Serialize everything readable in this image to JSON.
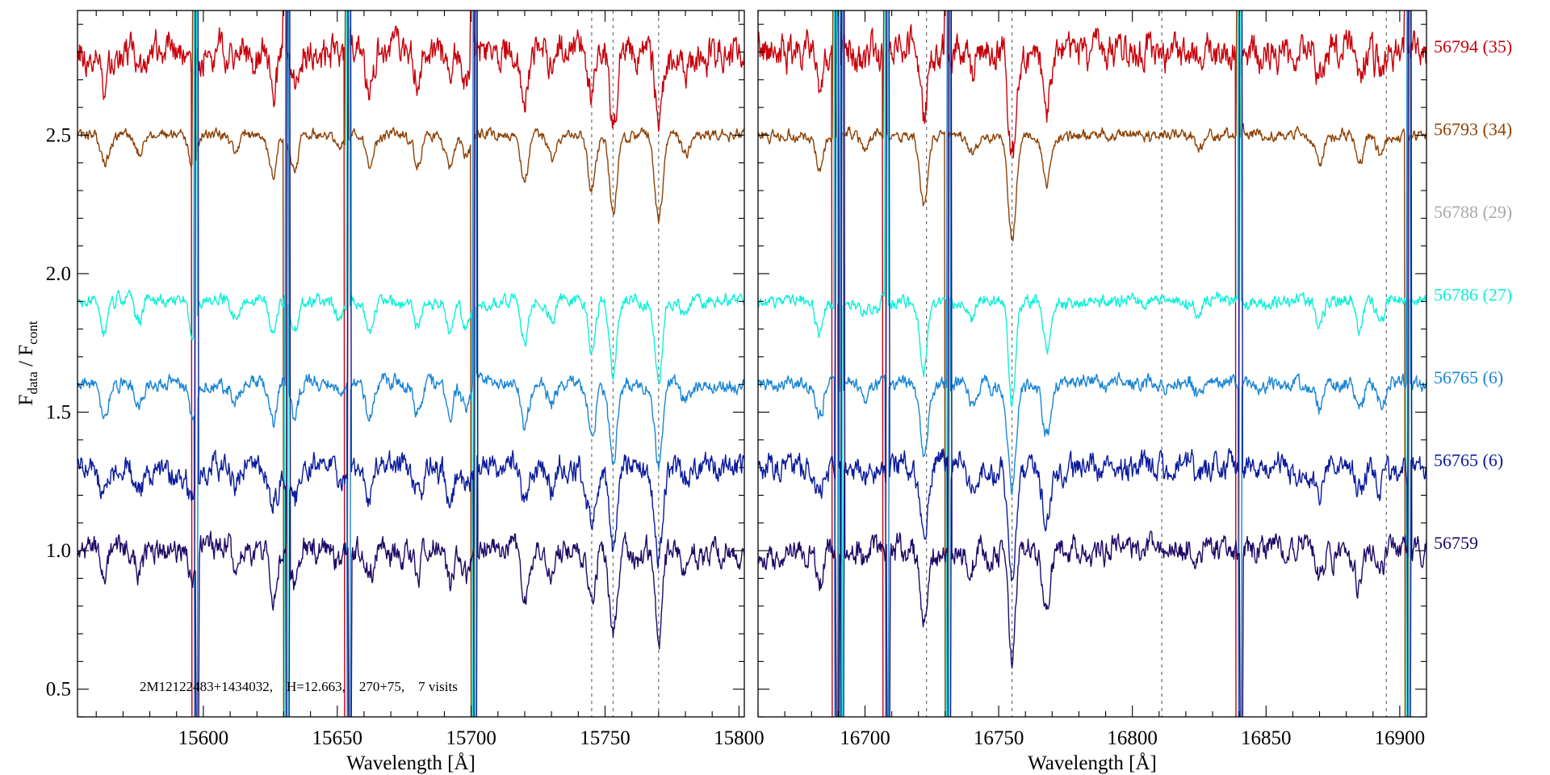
{
  "chart_data": {
    "type": "line",
    "ylabel": {
      "f1": "F",
      "sub1": "data",
      "sep": " / ",
      "f2": "F",
      "sub2": "cont"
    },
    "ylim": [
      0.4,
      2.95
    ],
    "yticks": [
      0.5,
      1.0,
      1.5,
      2.0,
      2.5
    ],
    "ytick_labels": [
      "0.5",
      "1.0",
      "1.5",
      "2.0",
      "2.5"
    ],
    "yminor_step": 0.1,
    "grid": false,
    "annotation": "2M12122483+1434032,    H=12.663,    270+75,    7 visits",
    "panels": [
      {
        "xlabel": "Wavelength [Å]",
        "xlim": [
          15553,
          15802
        ],
        "xticks": [
          15600,
          15650,
          15700,
          15750,
          15800
        ],
        "xtick_labels": [
          "15600",
          "15650",
          "15700",
          "15750",
          "15800"
        ],
        "xminor_step": 10,
        "dashed_lines": [
          15745,
          15753,
          15770
        ],
        "absorption_lines": [
          [
            15563,
            0.1
          ],
          [
            15576,
            0.07
          ],
          [
            15596,
            0.12
          ],
          [
            15612,
            0.06
          ],
          [
            15626,
            0.14
          ],
          [
            15634,
            0.12
          ],
          [
            15651,
            0.05
          ],
          [
            15662,
            0.12
          ],
          [
            15680,
            0.1
          ],
          [
            15692,
            0.11
          ],
          [
            15698,
            0.08
          ],
          [
            15720,
            0.15
          ],
          [
            15730,
            0.08
          ],
          [
            15745,
            0.2
          ],
          [
            15753,
            0.28
          ],
          [
            15770,
            0.3
          ],
          [
            15780,
            0.06
          ]
        ],
        "spikes": [
          15597,
          15631,
          15654,
          15701
        ]
      },
      {
        "xlabel": "Wavelength [Å]",
        "xlim": [
          16660,
          16910
        ],
        "xticks": [
          16700,
          16750,
          16800,
          16850,
          16900
        ],
        "xtick_labels": [
          "16700",
          "16750",
          "16800",
          "16850",
          "16900"
        ],
        "xminor_step": 10,
        "dashed_lines": [
          16723,
          16755,
          16811,
          16895
        ],
        "absorption_lines": [
          [
            16683,
            0.12
          ],
          [
            16700,
            0.05
          ],
          [
            16722,
            0.25
          ],
          [
            16740,
            0.06
          ],
          [
            16755,
            0.38
          ],
          [
            16768,
            0.18
          ],
          [
            16825,
            0.05
          ],
          [
            16870,
            0.09
          ],
          [
            16885,
            0.1
          ],
          [
            16893,
            0.07
          ]
        ],
        "spikes": [
          16689,
          16691,
          16708,
          16731,
          16840,
          16903
        ]
      }
    ],
    "series": [
      {
        "name": "56794 (35)",
        "color": "#c8000a",
        "offset": 2.8,
        "noise": 0.09,
        "seed": 11
      },
      {
        "name": "56793 (34)",
        "color": "#8e4206",
        "offset": 2.5,
        "noise": 0.03,
        "seed": 23
      },
      {
        "name": "56788 (29)",
        "color": "#aaaaaa",
        "offset": 2.2,
        "noise": 0.0,
        "seed": 0,
        "hidden": true
      },
      {
        "name": "56786 (27)",
        "color": "#10f0d8",
        "offset": 1.9,
        "noise": 0.035,
        "seed": 37
      },
      {
        "name": "56765 (6)",
        "color": "#1a86d6",
        "offset": 1.6,
        "noise": 0.04,
        "seed": 41
      },
      {
        "name": "56765 (6)",
        "color": "#0c1c9c",
        "offset": 1.3,
        "noise": 0.07,
        "seed": 53
      },
      {
        "name": "56759",
        "color": "#200a66",
        "offset": 1.0,
        "noise": 0.07,
        "seed": 67
      }
    ]
  }
}
